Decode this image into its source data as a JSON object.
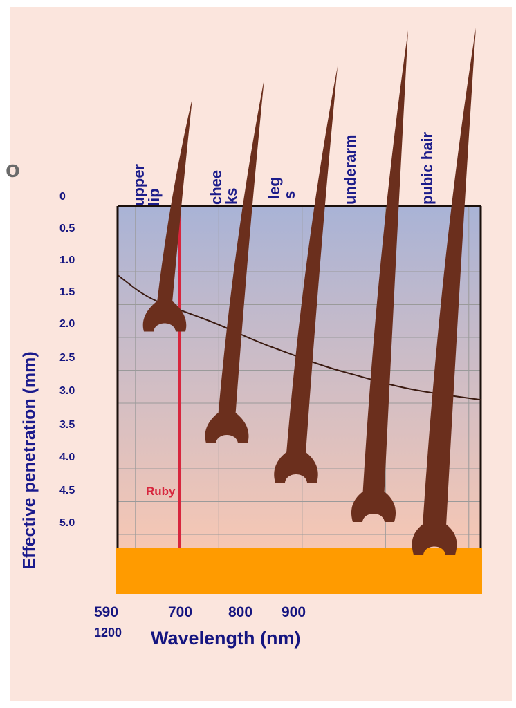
{
  "page": {
    "title_fragment": "o"
  },
  "chart_data": {
    "type": "line",
    "xlabel": "Wavelength (nm)",
    "ylabel": "Effective penetration (mm)",
    "x_ticks": [
      "590",
      "700",
      "800",
      "900"
    ],
    "x_end_label": "1200",
    "y_ticks": [
      "0",
      "0.5",
      "1.0",
      "1.5",
      "2.0",
      "2.5",
      "3.0",
      "3.5",
      "4.0",
      "4.5",
      "5.0"
    ],
    "ylim": [
      0,
      5.5
    ],
    "y_inverted": true,
    "grid": true,
    "series": [
      {
        "name": "",
        "x": [
          590,
          640,
          700,
          760,
          820,
          880,
          940,
          1000,
          1060,
          1120,
          1200
        ],
        "y": [
          1.05,
          1.4,
          1.6,
          1.8,
          2.05,
          2.25,
          2.45,
          2.6,
          2.75,
          2.85,
          2.95
        ],
        "color": "#3a1a10"
      }
    ],
    "laser_lines": [
      {
        "label": "Ruby",
        "x": 694,
        "color": "#d7263d"
      }
    ],
    "hair_areas": [
      {
        "label_lines": [
          "upper",
          "lip"
        ],
        "follicle_depth": 1.7
      },
      {
        "label_lines": [
          "chee",
          "ks"
        ],
        "follicle_depth": 3.4
      },
      {
        "label_lines": [
          "leg",
          "s"
        ],
        "follicle_depth": 4.0
      },
      {
        "label_lines": [
          "underarm"
        ],
        "follicle_depth": 4.6
      },
      {
        "label_lines": [
          "pubic hair"
        ],
        "follicle_depth": 5.1
      }
    ],
    "colors": {
      "background": "#fbe5dd",
      "plot_top": "#a9b3d6",
      "plot_bottom": "#f6c7b4",
      "base_band": "#ff9b00",
      "hair": "#6b2f1d",
      "axis_text": "#151580"
    }
  }
}
